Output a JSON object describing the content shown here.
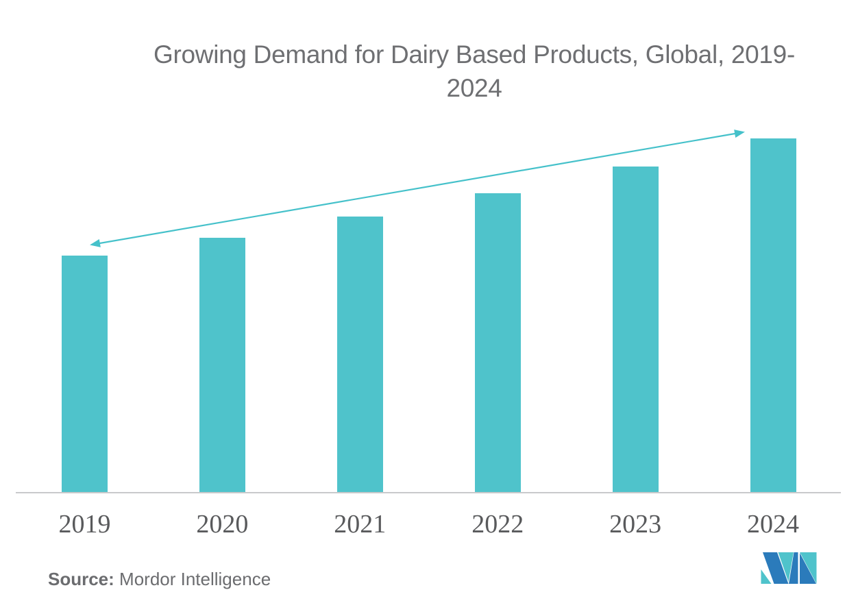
{
  "title": {
    "line1": "Growing Demand for Dairy Based Products, Global, 2019-",
    "line2": "2024",
    "color": "#6e6f72"
  },
  "chart_data": {
    "type": "bar",
    "title": "Growing Demand for Dairy Based Products, Global, 2019-2024",
    "categories": [
      "2019",
      "2020",
      "2021",
      "2022",
      "2023",
      "2024"
    ],
    "values": [
      67,
      72,
      78,
      84.5,
      92,
      100
    ],
    "xlabel": "",
    "ylabel": "",
    "ylim": [
      0,
      108
    ],
    "grid": false,
    "legend": false,
    "y_axis_shown": false,
    "bar_color": "#4fc3cb",
    "axis_line_color": "#c8c9cb",
    "tick_label_color": "#595a5c",
    "annotations": [
      {
        "type": "double-headed-arrow",
        "from_category": "2019",
        "to_category": "2024",
        "color": "#45c1ca"
      }
    ]
  },
  "footer": {
    "source_label": "Source:",
    "source_value": " Mordor Intelligence",
    "logo": {
      "name": "mordor-intelligence-logo",
      "teal": "#4fc3cb",
      "blue": "#2b7bbb"
    }
  }
}
